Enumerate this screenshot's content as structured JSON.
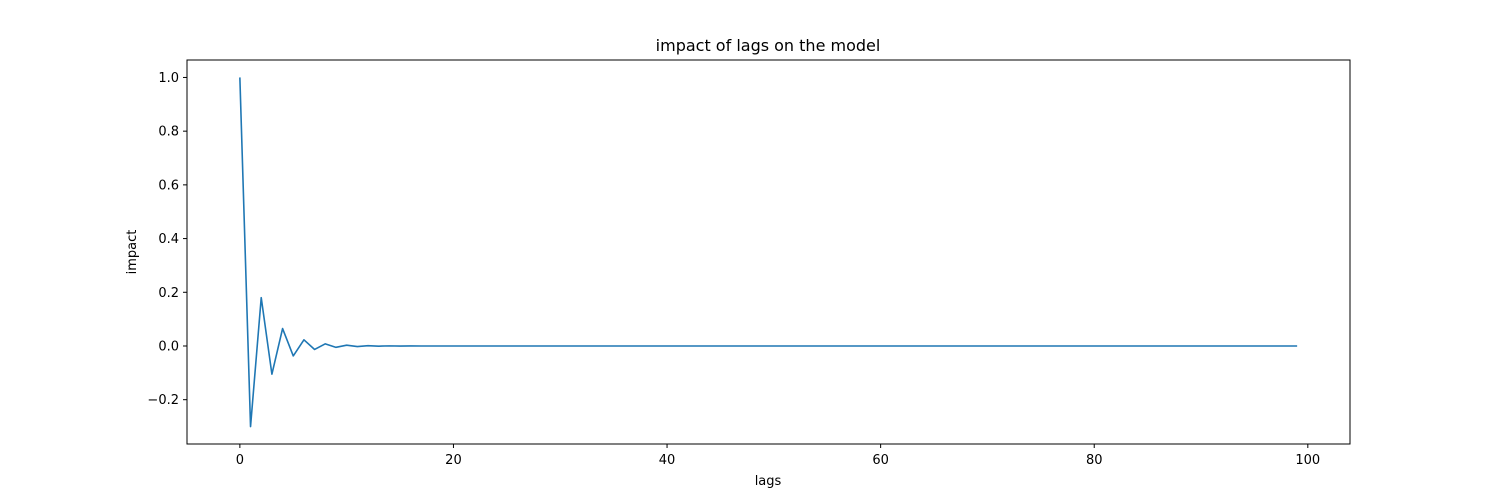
{
  "chart_data": {
    "type": "line",
    "title": "impact of lags on the model",
    "xlabel": "lags",
    "ylabel": "impact",
    "xlim": [
      -4.95,
      103.95
    ],
    "ylim": [
      -0.365,
      1.065
    ],
    "xticks": [
      0,
      20,
      40,
      60,
      80,
      100
    ],
    "xtick_labels": [
      "0",
      "20",
      "40",
      "60",
      "80",
      "100"
    ],
    "yticks": [
      -0.2,
      0.0,
      0.2,
      0.4,
      0.6,
      0.8,
      1.0
    ],
    "ytick_labels": [
      "−0.2",
      "0.0",
      "0.2",
      "0.4",
      "0.6",
      "0.8",
      "1.0"
    ],
    "grid": false,
    "legend": false,
    "series": [
      {
        "color": "#1f77b4",
        "x": [
          0,
          1,
          2,
          3,
          4,
          5,
          6,
          7,
          8,
          9,
          10,
          11,
          12,
          13,
          14,
          15,
          16,
          17,
          18,
          19,
          20,
          21,
          22,
          23,
          24,
          25,
          26,
          27,
          28,
          29,
          30,
          31,
          32,
          33,
          34,
          35,
          36,
          37,
          38,
          39,
          40,
          41,
          42,
          43,
          44,
          45,
          46,
          47,
          48,
          49,
          50,
          51,
          52,
          53,
          54,
          55,
          56,
          57,
          58,
          59,
          60,
          61,
          62,
          63,
          64,
          65,
          66,
          67,
          68,
          69,
          70,
          71,
          72,
          73,
          74,
          75,
          76,
          77,
          78,
          79,
          80,
          81,
          82,
          83,
          84,
          85,
          86,
          87,
          88,
          89,
          90,
          91,
          92,
          93,
          94,
          95,
          96,
          97,
          98,
          99
        ],
        "y": [
          1.0,
          -0.3,
          0.18,
          -0.105,
          0.065,
          -0.037,
          0.023,
          -0.013,
          0.008,
          -0.005,
          0.003,
          -0.002,
          0.001,
          -0.0006,
          0.0004,
          -0.0002,
          0.0001,
          0,
          0,
          0,
          0,
          0,
          0,
          0,
          0,
          0,
          0,
          0,
          0,
          0,
          0,
          0,
          0,
          0,
          0,
          0,
          0,
          0,
          0,
          0,
          0,
          0,
          0,
          0,
          0,
          0,
          0,
          0,
          0,
          0,
          0,
          0,
          0,
          0,
          0,
          0,
          0,
          0,
          0,
          0,
          0,
          0,
          0,
          0,
          0,
          0,
          0,
          0,
          0,
          0,
          0,
          0,
          0,
          0,
          0,
          0,
          0,
          0,
          0,
          0,
          0,
          0,
          0,
          0,
          0,
          0,
          0,
          0,
          0,
          0,
          0,
          0,
          0,
          0,
          0,
          0,
          0,
          0,
          0,
          0
        ]
      }
    ]
  }
}
